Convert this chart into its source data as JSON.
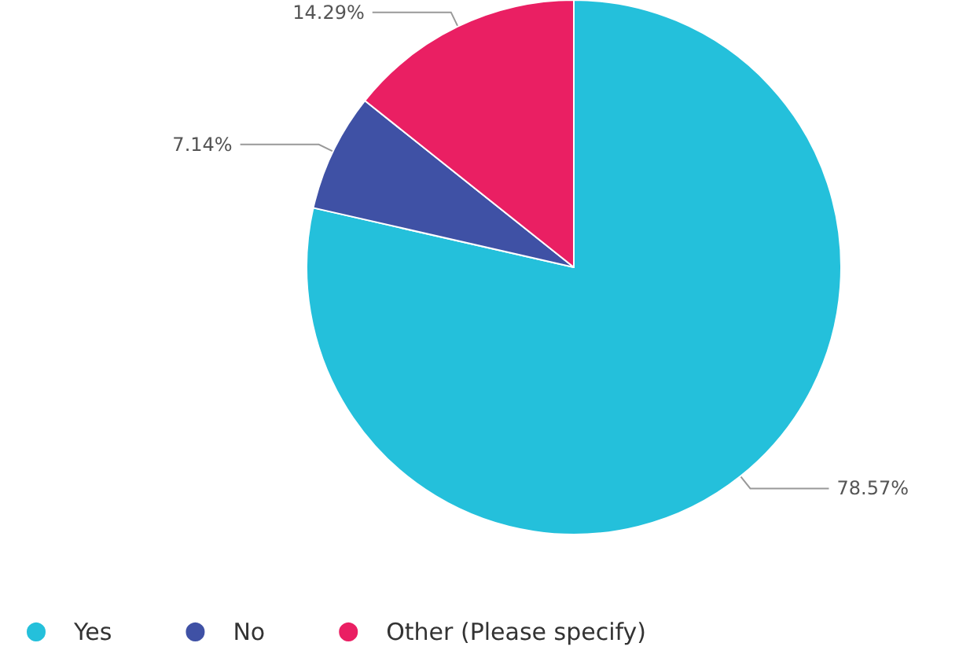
{
  "chart_data": {
    "type": "pie",
    "categories": [
      "Yes",
      "No",
      "Other (Please specify)"
    ],
    "values": [
      78.57,
      7.14,
      14.29
    ],
    "colors": [
      "#24c0db",
      "#3f51a5",
      "#ea1f63"
    ],
    "value_labels": [
      "78.57%",
      "7.14%",
      "14.29%"
    ],
    "legend": "bottom left"
  }
}
